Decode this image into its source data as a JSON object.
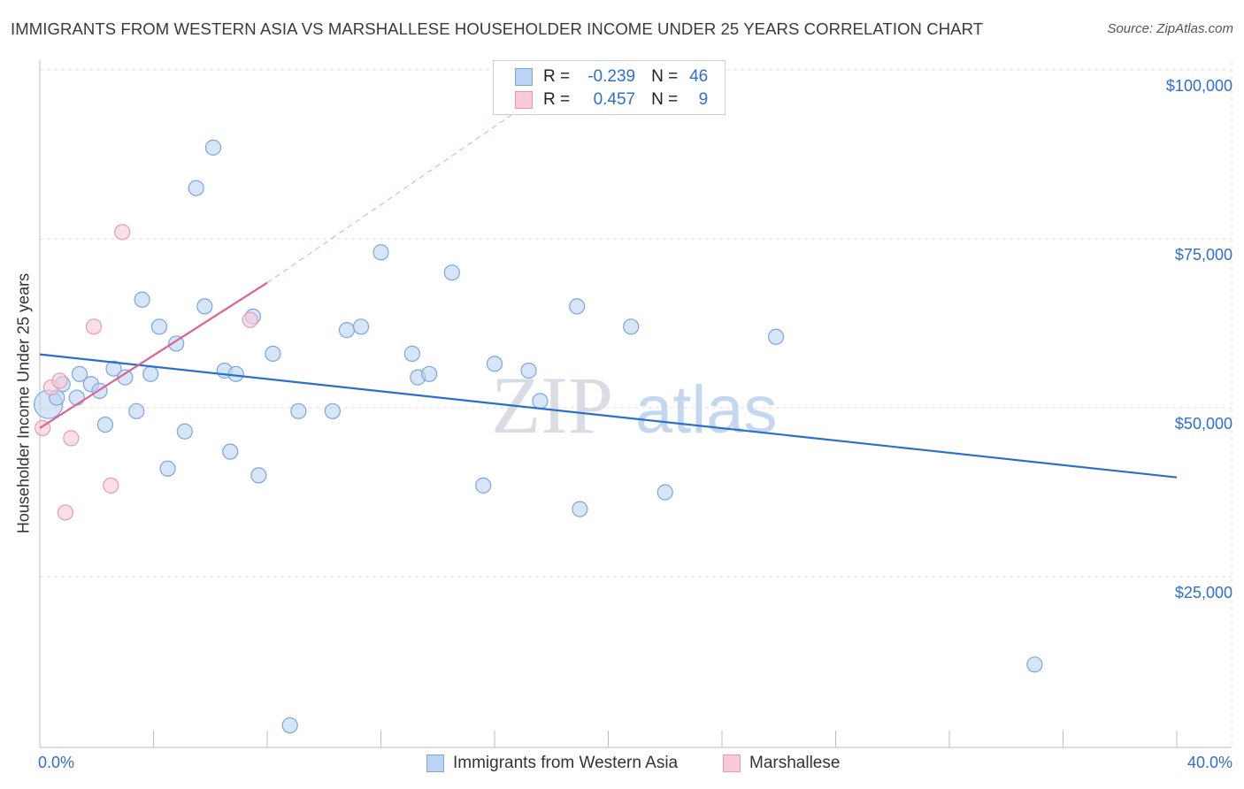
{
  "title": "IMMIGRANTS FROM WESTERN ASIA VS MARSHALLESE HOUSEHOLDER INCOME UNDER 25 YEARS CORRELATION CHART",
  "source": "Source: ZipAtlas.com",
  "watermark": {
    "zip": "ZIP",
    "atlas": "atlas"
  },
  "legend": {
    "rows": [
      {
        "r_label": "R =",
        "r_value": "-0.239",
        "n_label": "N =",
        "n_value": "46",
        "color": "#7aa6e0"
      },
      {
        "r_label": "R =",
        "r_value": "0.457",
        "n_label": "N =",
        "n_value": "9",
        "color": "#e69ab4"
      }
    ]
  },
  "chart_data": {
    "type": "scatter",
    "title": "IMMIGRANTS FROM WESTERN ASIA VS MARSHALLESE HOUSEHOLDER INCOME UNDER 25 YEARS CORRELATION CHART",
    "xlabel": "",
    "ylabel": "Householder Income Under 25 years",
    "xlim": [
      0,
      40
    ],
    "ylim": [
      0,
      102000
    ],
    "x_tick_labels": {
      "min": "0.0%",
      "max": "40.0%"
    },
    "y_ticks": [
      {
        "value": 25000,
        "label": "$25,000"
      },
      {
        "value": 50000,
        "label": "$50,000"
      },
      {
        "value": 75000,
        "label": "$75,000"
      },
      {
        "value": 100000,
        "label": "$100,000"
      }
    ],
    "grid": true,
    "series": [
      {
        "name": "Immigrants from Western Asia",
        "color": "#7aa6e0",
        "fill": "#bcd4f4",
        "points": [
          [
            0.3,
            50500
          ],
          [
            0.6,
            51500
          ],
          [
            0.8,
            53500
          ],
          [
            1.3,
            51500
          ],
          [
            1.4,
            55000
          ],
          [
            1.8,
            53500
          ],
          [
            2.1,
            52500
          ],
          [
            2.3,
            47500
          ],
          [
            2.6,
            55800
          ],
          [
            3.0,
            54500
          ],
          [
            3.4,
            49500
          ],
          [
            3.6,
            66000
          ],
          [
            3.9,
            55000
          ],
          [
            4.2,
            62000
          ],
          [
            4.5,
            41000
          ],
          [
            4.8,
            59500
          ],
          [
            5.1,
            46500
          ],
          [
            5.5,
            82500
          ],
          [
            5.8,
            65000
          ],
          [
            6.1,
            88500
          ],
          [
            6.5,
            55500
          ],
          [
            6.7,
            43500
          ],
          [
            6.9,
            55000
          ],
          [
            7.5,
            63500
          ],
          [
            7.7,
            40000
          ],
          [
            8.2,
            58000
          ],
          [
            8.8,
            3000
          ],
          [
            9.1,
            49500
          ],
          [
            10.3,
            49500
          ],
          [
            10.8,
            61500
          ],
          [
            11.3,
            62000
          ],
          [
            12.0,
            73000
          ],
          [
            13.1,
            58000
          ],
          [
            13.3,
            54500
          ],
          [
            13.7,
            55000
          ],
          [
            14.5,
            70000
          ],
          [
            15.6,
            38500
          ],
          [
            16.0,
            56500
          ],
          [
            17.2,
            55500
          ],
          [
            17.6,
            51000
          ],
          [
            18.9,
            65000
          ],
          [
            19.0,
            35000
          ],
          [
            20.8,
            62000
          ],
          [
            22.0,
            37500
          ],
          [
            25.9,
            60500
          ],
          [
            35.0,
            12000
          ]
        ],
        "trend": {
          "x_start": 0,
          "y_start": 57900,
          "x_end": 40,
          "y_end": 39700
        }
      },
      {
        "name": "Marshallese",
        "color": "#e69ab4",
        "fill": "#f9c9d8",
        "points": [
          [
            0.1,
            47000
          ],
          [
            0.4,
            53000
          ],
          [
            0.7,
            54000
          ],
          [
            0.9,
            34500
          ],
          [
            1.1,
            45500
          ],
          [
            2.5,
            38500
          ],
          [
            1.9,
            62000
          ],
          [
            2.9,
            76000
          ],
          [
            7.4,
            63000
          ]
        ],
        "trend": {
          "x_start": 0,
          "y_start": 47000,
          "x_end": 8,
          "y_end": 68500
        },
        "trend_extension": {
          "x_start": 8,
          "y_end_at": 17,
          "y_end": 94500
        }
      }
    ]
  },
  "bottom_legend": [
    {
      "label": "Immigrants from Western Asia"
    },
    {
      "label": "Marshallese"
    }
  ]
}
